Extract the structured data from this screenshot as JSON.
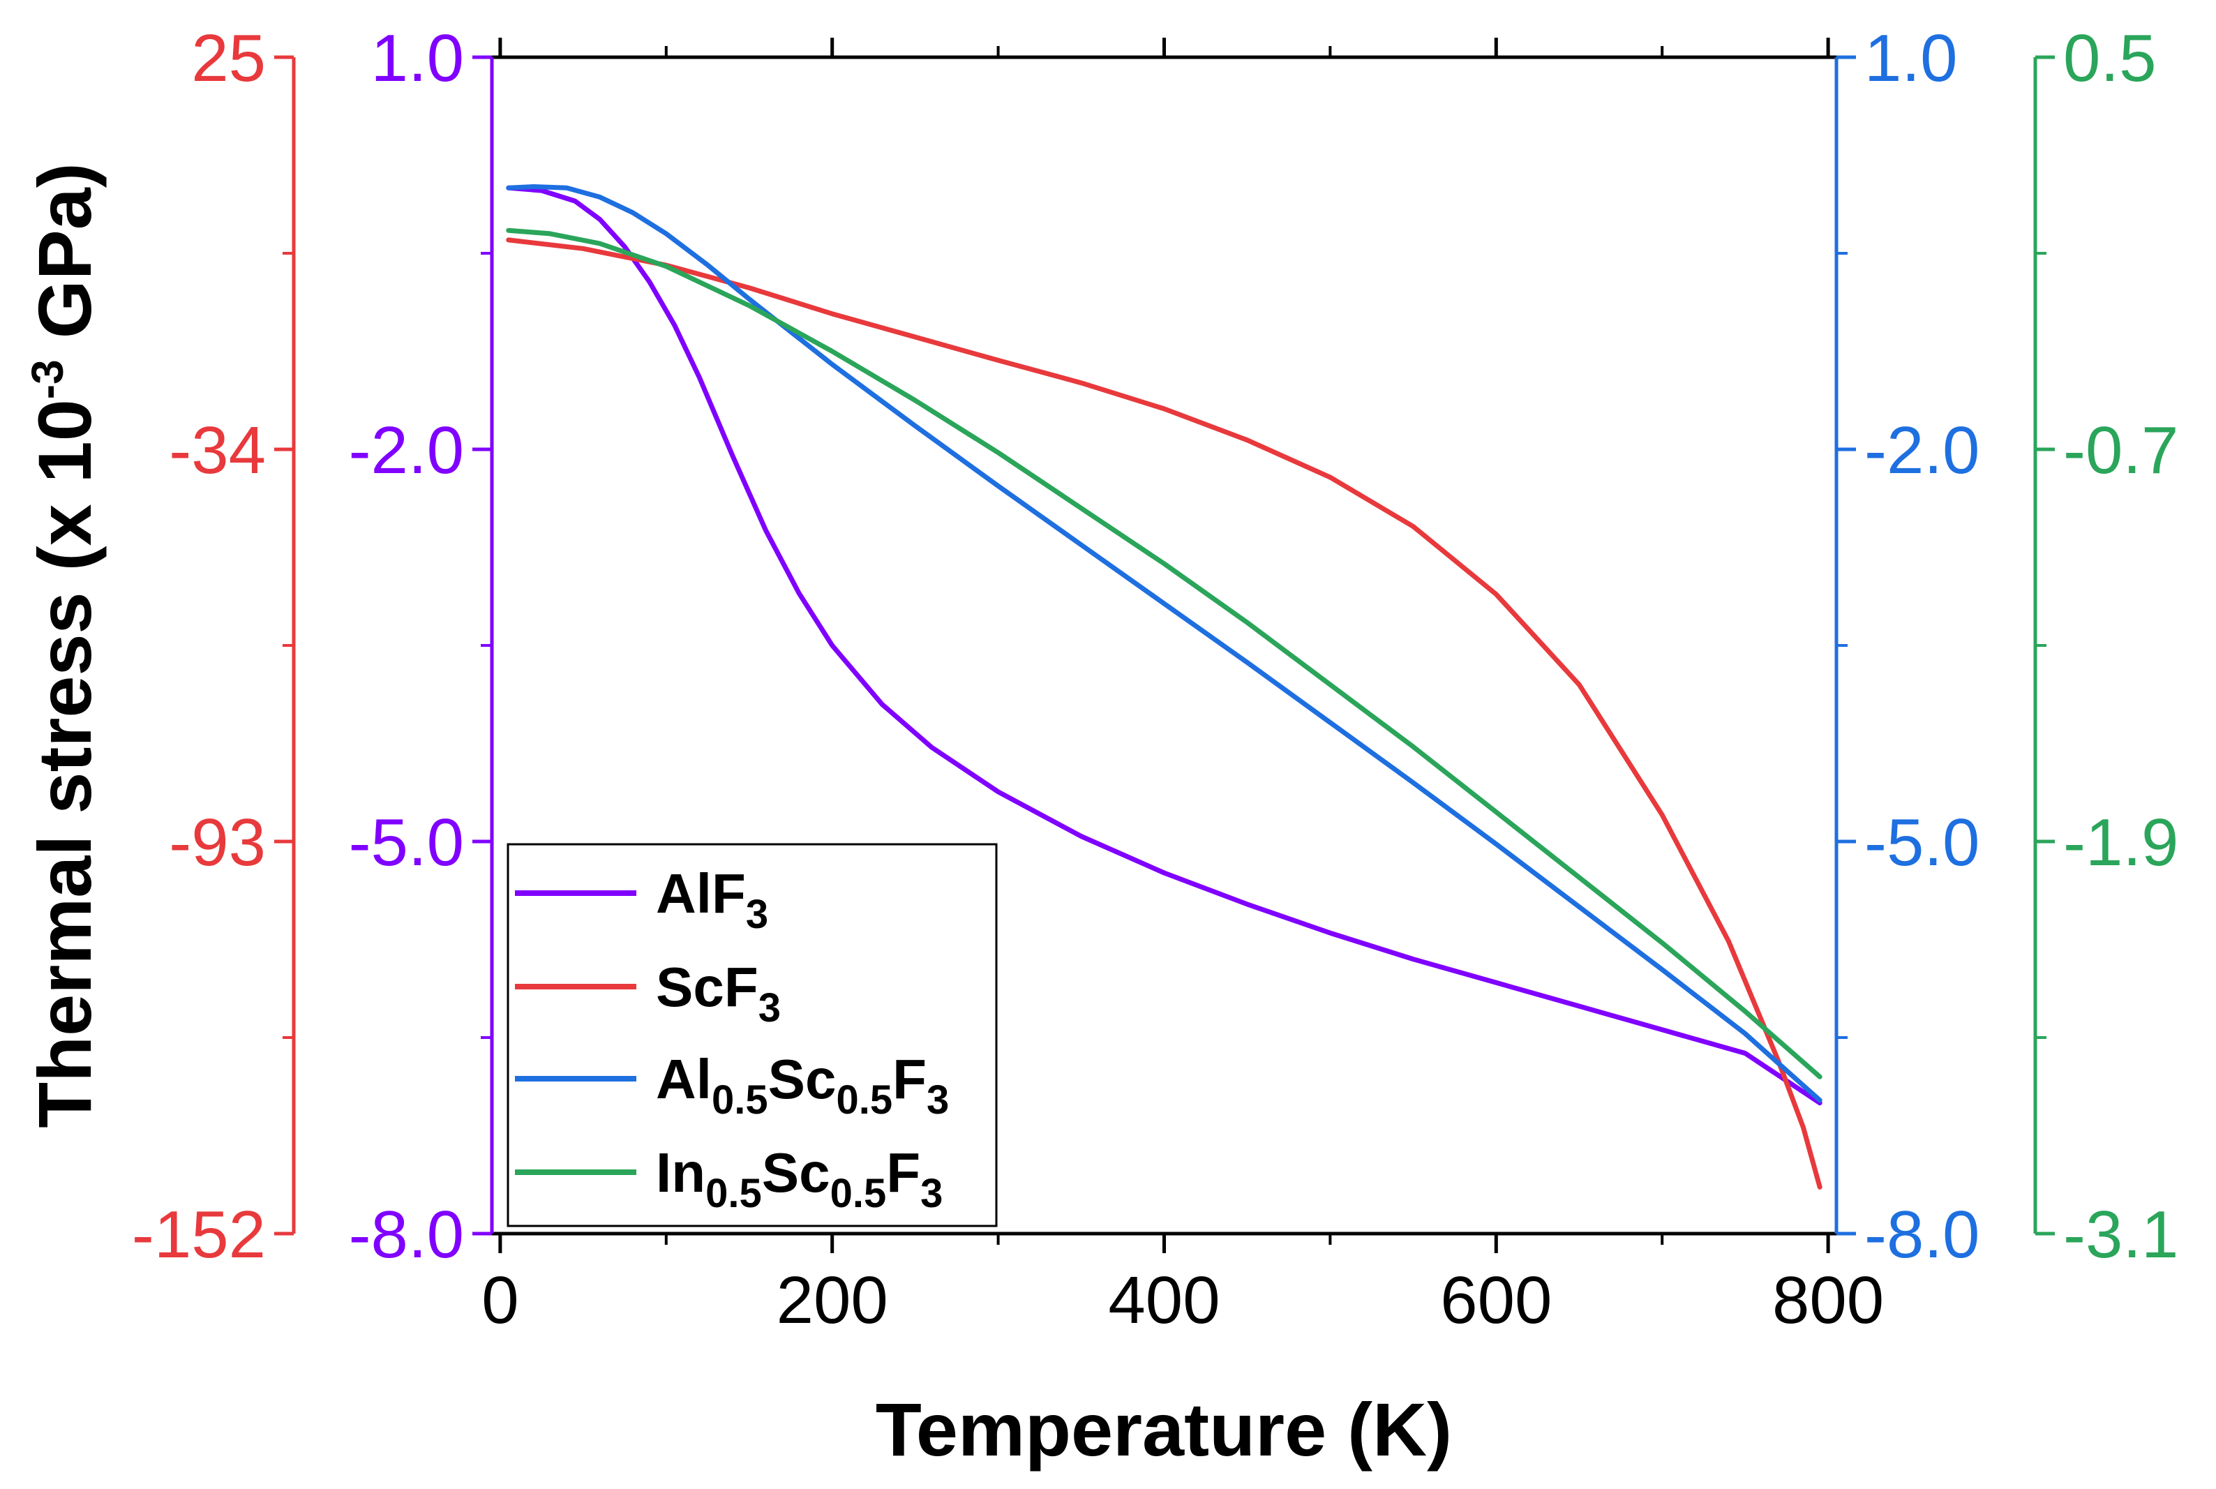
{
  "chart_data": {
    "type": "line",
    "xlabel": "Temperature (K)",
    "ylabel_main": "Thermal stress (x 10",
    "ylabel_exp": "-3",
    "ylabel_unit": " GPa)",
    "xlim": [
      -5,
      805
    ],
    "x_ticks": [
      0,
      200,
      400,
      600,
      800
    ],
    "x_tick_labels": [
      "0",
      "200",
      "400",
      "600",
      "800"
    ],
    "x_minor_ticks": [
      100,
      300,
      500,
      700
    ],
    "axes": [
      {
        "id": "red",
        "color": "#e8393c",
        "ylim": [
          -152,
          25
        ],
        "ticks": [
          25,
          -34,
          -93,
          -152
        ],
        "tick_labels": [
          "25",
          "-34",
          "-93",
          "-152"
        ]
      },
      {
        "id": "purple",
        "color": "#8000ff",
        "ylim": [
          -8.0,
          1.0
        ],
        "ticks": [
          1.0,
          -2.0,
          -5.0,
          -8.0
        ],
        "tick_labels": [
          "1.0",
          "-2.0",
          "-5.0",
          "-8.0"
        ]
      },
      {
        "id": "blue",
        "color": "#1e6fe0",
        "ylim": [
          -8.0,
          1.0
        ],
        "ticks": [
          1.0,
          -2.0,
          -5.0,
          -8.0
        ],
        "tick_labels": [
          "1.0",
          "-2.0",
          "-5.0",
          "-8.0"
        ]
      },
      {
        "id": "green",
        "color": "#2aa55a",
        "ylim": [
          -3.1,
          0.5
        ],
        "ticks": [
          0.5,
          -0.7,
          -1.9,
          -3.1
        ],
        "tick_labels": [
          "0.5",
          "-0.7",
          "-1.9",
          "-3.1"
        ]
      }
    ],
    "series": [
      {
        "name": "AlF3",
        "label_parts": [
          {
            "t": "AlF"
          },
          {
            "t": "3",
            "sub": true
          }
        ],
        "color": "#8000ff",
        "axis": "purple",
        "x": [
          5,
          25,
          45,
          60,
          75,
          90,
          105,
          120,
          140,
          160,
          180,
          200,
          230,
          260,
          300,
          350,
          400,
          450,
          500,
          550,
          600,
          650,
          700,
          750,
          795
        ],
        "y": [
          0.0,
          -0.02,
          -0.1,
          -0.24,
          -0.45,
          -0.72,
          -1.05,
          -1.45,
          -2.05,
          -2.62,
          -3.1,
          -3.5,
          -3.95,
          -4.28,
          -4.62,
          -4.96,
          -5.24,
          -5.48,
          -5.7,
          -5.9,
          -6.08,
          -6.26,
          -6.44,
          -6.62,
          -7.0
        ]
      },
      {
        "name": "ScF3",
        "label_parts": [
          {
            "t": "ScF"
          },
          {
            "t": "3",
            "sub": true
          }
        ],
        "color": "#e8393c",
        "axis": "red",
        "x": [
          5,
          50,
          100,
          150,
          200,
          250,
          300,
          350,
          400,
          450,
          500,
          550,
          600,
          650,
          700,
          740,
          770,
          785,
          795
        ],
        "y": [
          -2.5,
          -3.8,
          -6.3,
          -9.7,
          -13.6,
          -17.1,
          -20.6,
          -24.0,
          -27.9,
          -32.6,
          -38.2,
          -45.6,
          -55.8,
          -69.4,
          -89.0,
          -108.0,
          -126.0,
          -136.0,
          -145.0
        ]
      },
      {
        "name": "Al0.5Sc0.5F3",
        "label_parts": [
          {
            "t": "Al"
          },
          {
            "t": "0.5",
            "sub": true
          },
          {
            "t": "Sc"
          },
          {
            "t": "0.5",
            "sub": true
          },
          {
            "t": "F"
          },
          {
            "t": "3",
            "sub": true
          }
        ],
        "color": "#1e6fe0",
        "axis": "blue",
        "x": [
          5,
          20,
          40,
          60,
          80,
          100,
          125,
          150,
          200,
          250,
          300,
          350,
          400,
          450,
          500,
          550,
          600,
          650,
          700,
          750,
          795
        ],
        "y": [
          0.0,
          0.01,
          0.0,
          -0.07,
          -0.19,
          -0.35,
          -0.59,
          -0.85,
          -1.35,
          -1.82,
          -2.28,
          -2.73,
          -3.18,
          -3.63,
          -4.09,
          -4.55,
          -5.02,
          -5.5,
          -5.98,
          -6.47,
          -6.98
        ]
      },
      {
        "name": "In0.5Sc0.5F3",
        "label_parts": [
          {
            "t": "In"
          },
          {
            "t": "0.5",
            "sub": true
          },
          {
            "t": "Sc"
          },
          {
            "t": "0.5",
            "sub": true
          },
          {
            "t": "F"
          },
          {
            "t": "3",
            "sub": true
          }
        ],
        "color": "#2aa55a",
        "axis": "green",
        "x": [
          5,
          30,
          60,
          100,
          150,
          200,
          250,
          300,
          350,
          400,
          450,
          500,
          550,
          600,
          650,
          700,
          750,
          795
        ],
        "y": [
          -0.03,
          -0.04,
          -0.07,
          -0.14,
          -0.26,
          -0.4,
          -0.55,
          -0.71,
          -0.88,
          -1.05,
          -1.23,
          -1.42,
          -1.61,
          -1.81,
          -2.01,
          -2.21,
          -2.42,
          -2.62
        ]
      }
    ],
    "legend_position": "lower-left"
  }
}
